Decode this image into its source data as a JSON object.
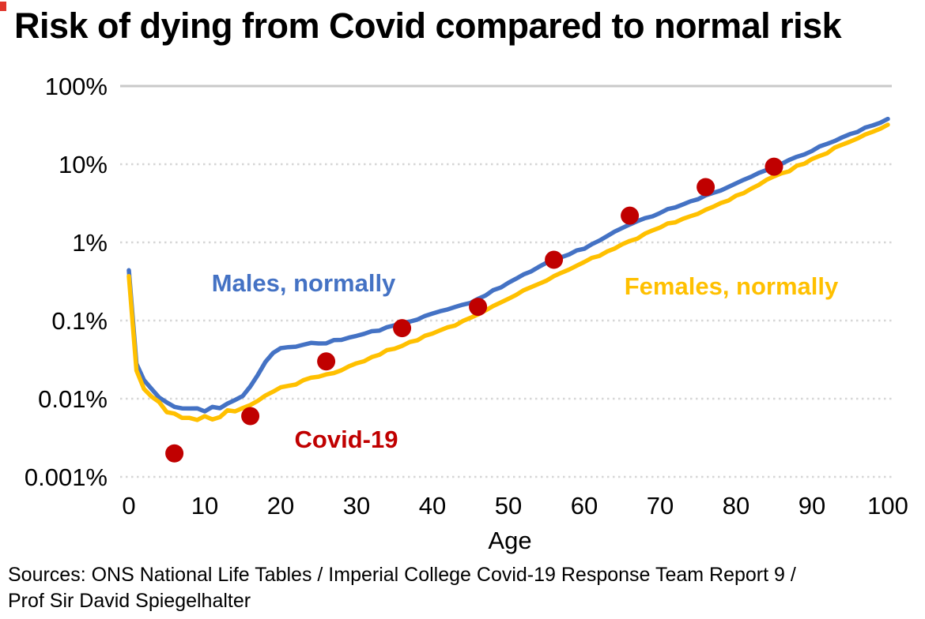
{
  "page": {
    "title": "Risk of dying from Covid compared to normal risk",
    "sources_lines": [
      "Sources: ONS National Life Tables / Imperial College Covid-19 Response Team Report 9  /",
      "Prof Sir David Spiegelhalter"
    ],
    "corner_mark_color": "#e0352b",
    "background": "#ffffff"
  },
  "chart_data": {
    "type": "line",
    "title": "Risk of dying from Covid compared to normal risk",
    "xlabel": "Age",
    "ylabel": "",
    "y_scale": "log",
    "xlim": [
      0,
      100
    ],
    "ylim_pct": [
      0.001,
      100
    ],
    "grid": "horizontal only; top 100% line solid, others dotted light gray",
    "legend": "none (direct colored text labels on chart)",
    "x_ticks": [
      {
        "label": "0",
        "value": 0
      },
      {
        "label": "10",
        "value": 10
      },
      {
        "label": "20",
        "value": 20
      },
      {
        "label": "30",
        "value": 30
      },
      {
        "label": "40",
        "value": 40
      },
      {
        "label": "50",
        "value": 50
      },
      {
        "label": "60",
        "value": 60
      },
      {
        "label": "70",
        "value": 70
      },
      {
        "label": "80",
        "value": 80
      },
      {
        "label": "90",
        "value": 90
      },
      {
        "label": "100",
        "value": 100
      }
    ],
    "y_ticks": [
      {
        "label": "100%",
        "value": 100
      },
      {
        "label": "10%",
        "value": 10
      },
      {
        "label": "1%",
        "value": 1
      },
      {
        "label": "0.1%",
        "value": 0.1
      },
      {
        "label": "0.01%",
        "value": 0.01
      },
      {
        "label": "0.001%",
        "value": 0.001
      }
    ],
    "series": [
      {
        "name": "Males, normally",
        "type": "line",
        "color": "#4472C4",
        "ages": [
          0,
          1,
          2,
          3,
          4,
          6,
          8,
          10,
          12,
          14,
          16,
          18,
          20,
          23,
          26,
          30,
          35,
          40,
          45,
          50,
          55,
          60,
          65,
          70,
          75,
          80,
          85,
          90,
          95,
          100
        ],
        "risk_pct": [
          0.44,
          0.028,
          0.017,
          0.013,
          0.011,
          0.0085,
          0.0072,
          0.0069,
          0.0076,
          0.009,
          0.014,
          0.03,
          0.046,
          0.049,
          0.052,
          0.064,
          0.085,
          0.12,
          0.17,
          0.3,
          0.55,
          0.85,
          1.55,
          2.4,
          3.6,
          5.6,
          9.3,
          15,
          24,
          38
        ]
      },
      {
        "name": "Females, normally",
        "type": "line",
        "color": "#FFC000",
        "ages": [
          0,
          1,
          2,
          3,
          4,
          6,
          8,
          10,
          12,
          14,
          16,
          18,
          20,
          23,
          26,
          30,
          35,
          40,
          45,
          50,
          55,
          60,
          65,
          70,
          75,
          80,
          85,
          90,
          95,
          100
        ],
        "risk_pct": [
          0.37,
          0.023,
          0.014,
          0.01,
          0.0082,
          0.0063,
          0.0057,
          0.0059,
          0.0062,
          0.007,
          0.0085,
          0.011,
          0.014,
          0.017,
          0.02,
          0.028,
          0.045,
          0.068,
          0.105,
          0.19,
          0.33,
          0.55,
          0.95,
          1.55,
          2.4,
          3.9,
          6.8,
          11.5,
          19.5,
          32
        ]
      },
      {
        "name": "Covid-19",
        "type": "scatter",
        "color": "#C00000",
        "ages": [
          6,
          16,
          26,
          36,
          46,
          56,
          66,
          76,
          85
        ],
        "risk_pct": [
          0.002,
          0.006,
          0.03,
          0.08,
          0.15,
          0.6,
          2.2,
          5.1,
          9.3
        ]
      }
    ]
  }
}
